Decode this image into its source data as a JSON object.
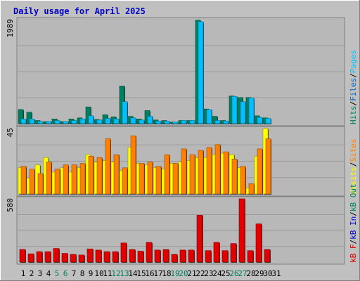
{
  "colors": {
    "background": "#c0c0c0",
    "plot": "#b8b8b8",
    "title": "#0000c8",
    "hits": "#008060",
    "files": "#00c0ff",
    "pages": "#00a0d0",
    "visits": "#ffff00",
    "sites": "#ff8000",
    "kb_in": "#0000c0",
    "kb_out": "#008060",
    "kb_f": "#e00000",
    "weekend": "#008060",
    "text": "#000000"
  },
  "chart_data": {
    "type": "bar",
    "title": "Daily usage for April 2025",
    "categories": [
      "1",
      "2",
      "3",
      "4",
      "5",
      "6",
      "7",
      "8",
      "9",
      "10",
      "11",
      "12",
      "13",
      "14",
      "15",
      "16",
      "17",
      "18",
      "19",
      "20",
      "21",
      "22",
      "23",
      "24",
      "25",
      "26",
      "27",
      "28",
      "29",
      "30",
      "31"
    ],
    "weekend_days": [
      "5",
      "6",
      "12",
      "13",
      "19",
      "20",
      "26",
      "27"
    ],
    "panels": [
      {
        "name": "hits_files",
        "ymax_label": "1989",
        "ylim": [
          0,
          1989
        ],
        "right_labels": [
          {
            "text": "Hits",
            "color": "#008060"
          },
          {
            "text": "/",
            "color": "#000000"
          },
          {
            "text": "Files",
            "color": "#0060c0"
          },
          {
            "text": "/",
            "color": "#000000"
          },
          {
            "text": "Pages",
            "color": "#00c0ff"
          }
        ],
        "series": [
          {
            "name": "Hits",
            "color": "#008060",
            "values": [
              270,
              220,
              60,
              40,
              90,
              40,
              90,
              110,
              320,
              80,
              170,
              130,
              720,
              140,
              90,
              250,
              70,
              60,
              30,
              60,
              60,
              1980,
              280,
              140,
              60,
              530,
              500,
              500,
              150,
              110,
              null
            ]
          },
          {
            "name": "Files",
            "color": "#00c0ff",
            "values": [
              90,
              90,
              40,
              40,
              60,
              40,
              60,
              90,
              150,
              70,
              100,
              90,
              420,
              110,
              70,
              140,
              50,
              50,
              30,
              60,
              60,
              1950,
              270,
              60,
              50,
              520,
              420,
              490,
              120,
              100,
              null
            ]
          }
        ]
      },
      {
        "name": "visits_sites",
        "ymax_label": "45",
        "ylim": [
          0,
          45
        ],
        "right_labels": [
          {
            "text": "Visits",
            "color": "#ffff00"
          },
          {
            "text": "/",
            "color": "#000000"
          },
          {
            "text": "Sites",
            "color": "#ff8000"
          }
        ],
        "series": [
          {
            "name": "Visits",
            "color": "#ffff00",
            "values": [
              18,
              11,
              20,
              25,
              15,
              18,
              15,
              18,
              27,
              22,
              23,
              22,
              16,
              32,
              21,
              20,
              18,
              17,
              21,
              22,
              23,
              25,
              25,
              27,
              28,
              27,
              18,
              4,
              26,
              45,
              null
            ]
          },
          {
            "name": "Sites",
            "color": "#ff8000",
            "values": [
              19,
              17,
              14,
              22,
              17,
              20,
              20,
              21,
              26,
              25,
              38,
              27,
              18,
              40,
              21,
              22,
              19,
              27,
              21,
              31,
              27,
              30,
              32,
              34,
              29,
              24,
              19,
              7,
              31,
              38,
              null
            ]
          }
        ]
      },
      {
        "name": "kbytes",
        "ymax_label": "580",
        "ylim": [
          0,
          580
        ],
        "right_labels": [
          {
            "text": "kB F",
            "color": "#e00000"
          },
          {
            "text": "/",
            "color": "#000000"
          },
          {
            "text": "kB In",
            "color": "#0000c0"
          },
          {
            "text": "/",
            "color": "#000000"
          },
          {
            "text": "kB Out",
            "color": "#008060"
          }
        ],
        "series": [
          {
            "name": "kB F",
            "color": "#e00000",
            "values": [
              115,
              75,
              95,
              95,
              125,
              80,
              70,
              65,
              120,
              110,
              95,
              95,
              175,
              115,
              100,
              180,
              110,
              115,
              70,
              110,
              110,
              430,
              105,
              180,
              105,
              170,
              580,
              105,
              350,
              115,
              null
            ]
          }
        ]
      }
    ]
  }
}
